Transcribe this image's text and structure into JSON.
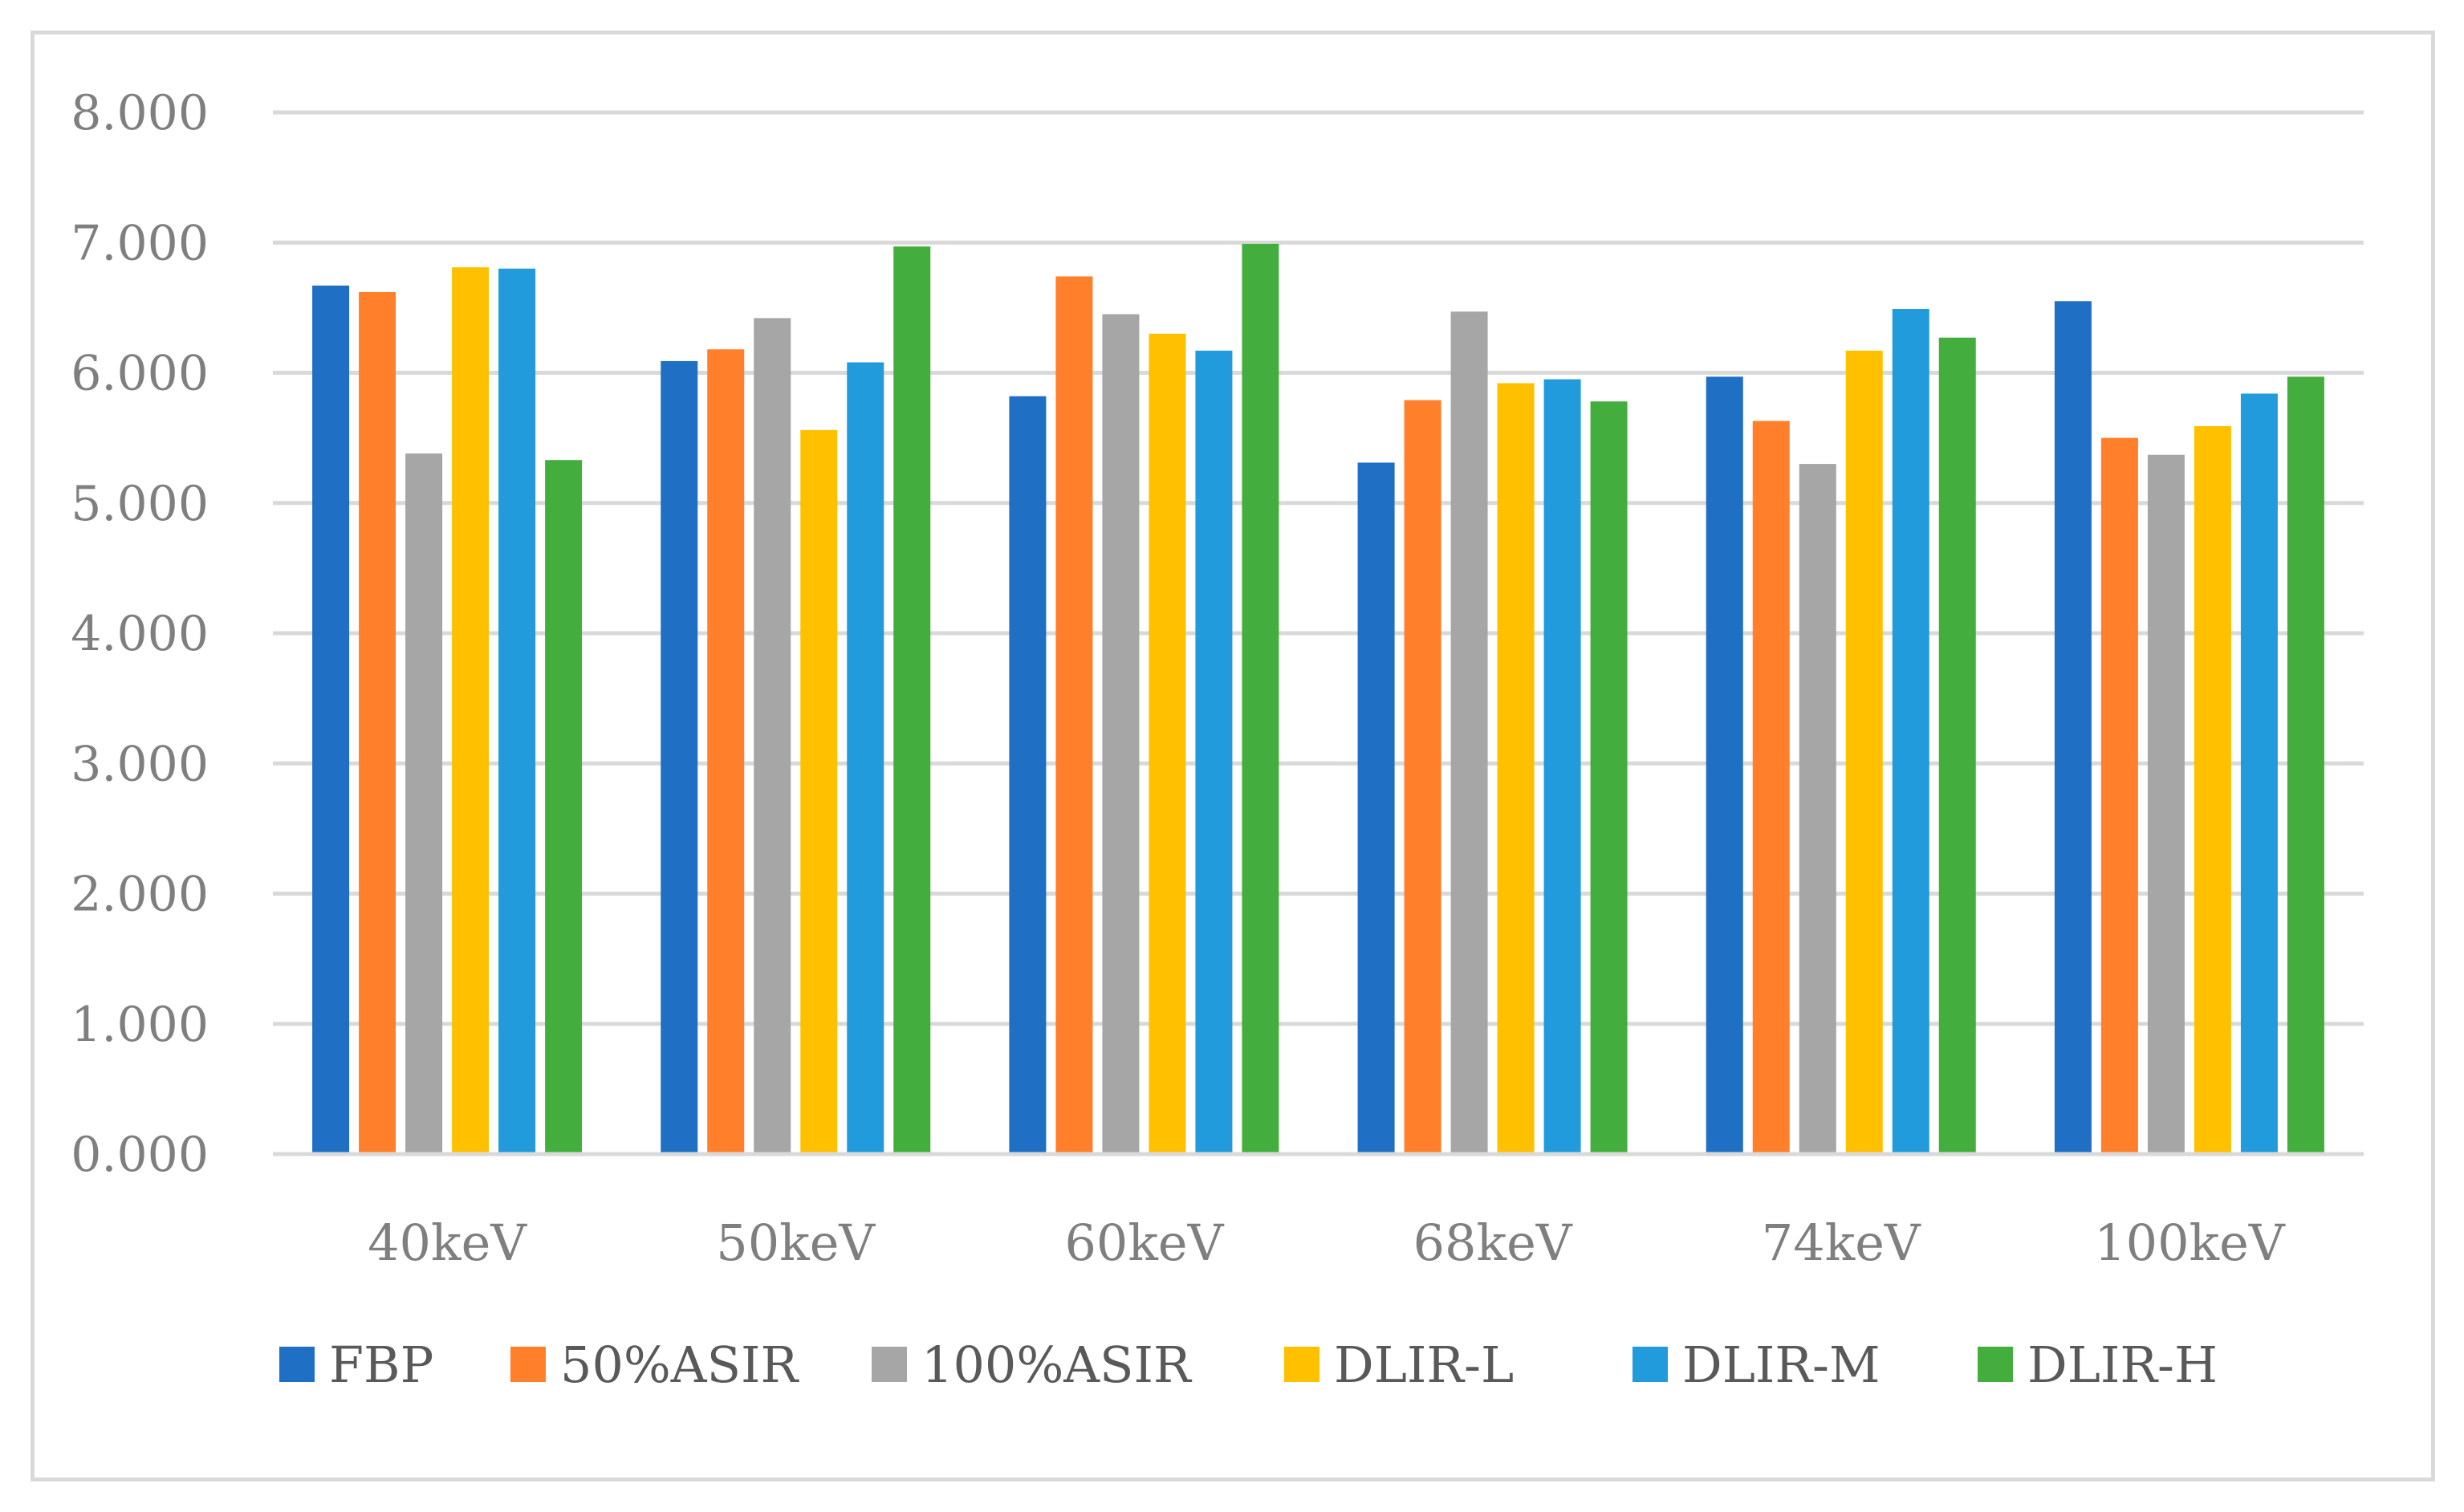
{
  "chart_data": {
    "type": "bar",
    "title": "",
    "xlabel": "",
    "ylabel": "",
    "ylim": [
      0,
      8
    ],
    "yticks": [
      "0.000",
      "1.000",
      "2.000",
      "3.000",
      "4.000",
      "5.000",
      "6.000",
      "7.000",
      "8.000"
    ],
    "grid": true,
    "legend_position": "bottom",
    "categories": [
      "40keV",
      "50keV",
      "60keV",
      "68keV",
      "74keV",
      "100keV"
    ],
    "series": [
      {
        "name": "FBP",
        "color": "#1f6fc5",
        "values": [
          6.67,
          6.09,
          5.82,
          5.31,
          5.97,
          6.55
        ]
      },
      {
        "name": "50%ASIR",
        "color": "#ff7f2a",
        "values": [
          6.62,
          6.18,
          6.74,
          5.79,
          5.63,
          5.5
        ]
      },
      {
        "name": "100%ASIR",
        "color": "#a6a6a6",
        "values": [
          5.38,
          6.42,
          6.45,
          6.47,
          5.3,
          5.37
        ]
      },
      {
        "name": "DLIR-L",
        "color": "#ffc000",
        "values": [
          6.81,
          5.56,
          6.3,
          5.92,
          6.17,
          5.59
        ]
      },
      {
        "name": "DLIR-M",
        "color": "#219bdb",
        "values": [
          6.8,
          6.08,
          6.17,
          5.95,
          6.49,
          5.84
        ]
      },
      {
        "name": "DLIR-H",
        "color": "#43ae3e",
        "values": [
          5.33,
          6.97,
          6.99,
          5.78,
          6.27,
          5.97
        ]
      }
    ]
  }
}
